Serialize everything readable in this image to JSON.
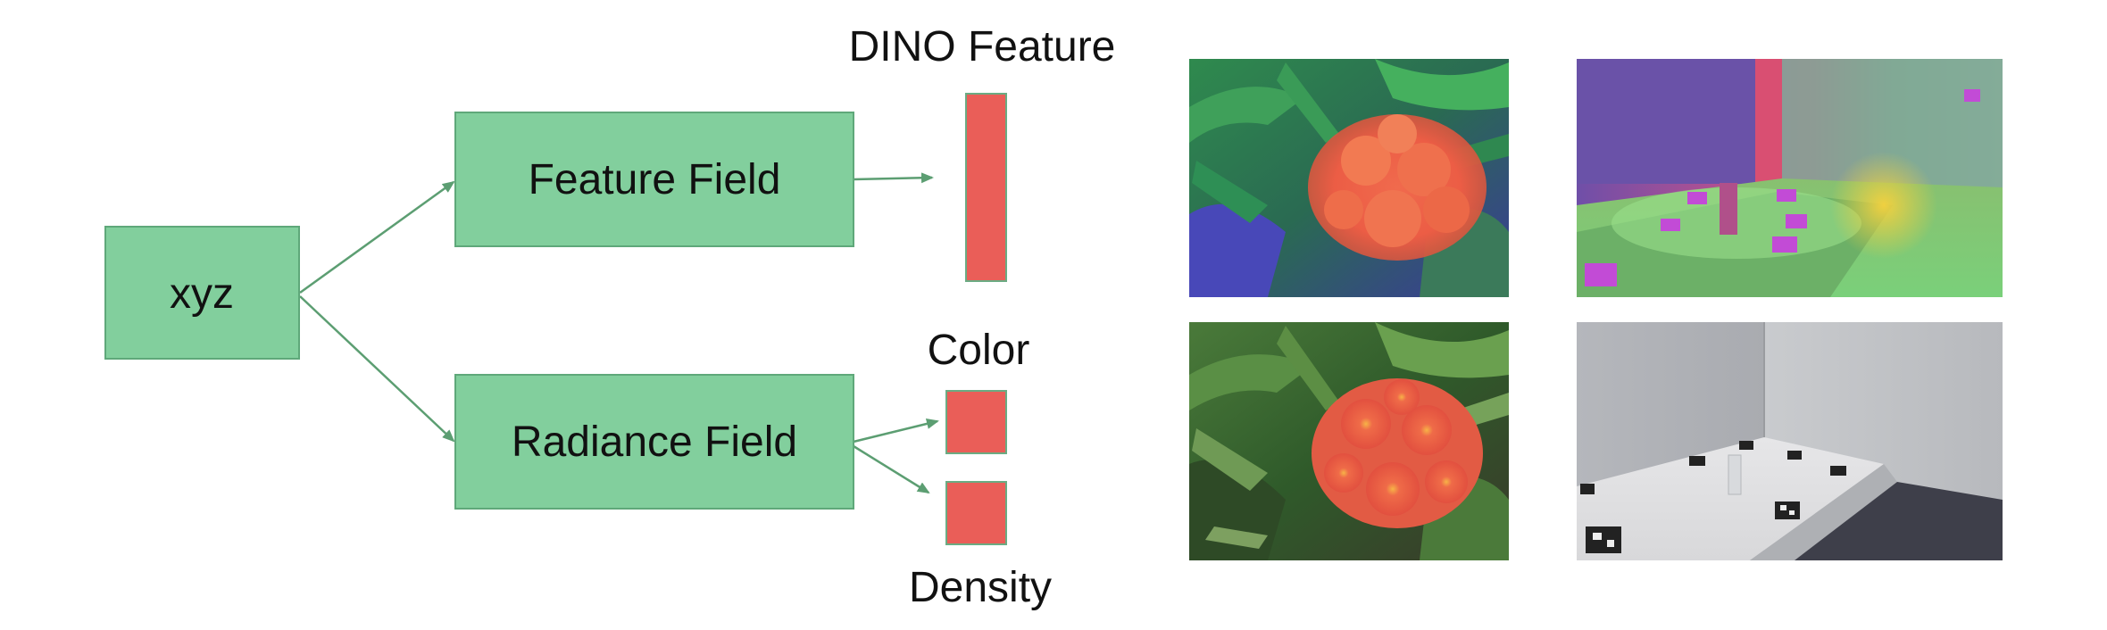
{
  "diagram": {
    "input_node": {
      "label": "xyz"
    },
    "feature_field": {
      "label": "Feature Field"
    },
    "radiance_field": {
      "label": "Radiance Field"
    },
    "outputs": {
      "dino_feature": "DINO Feature",
      "color": "Color",
      "density": "Density"
    }
  },
  "images": [
    {
      "id": "flower-feature-visualization",
      "kind": "feature map of flower scene"
    },
    {
      "id": "room-feature-visualization",
      "kind": "feature map of room scene"
    },
    {
      "id": "flower-rgb",
      "kind": "photo of red flowers among green leaves"
    },
    {
      "id": "room-rgb",
      "kind": "photo of a table in a grey room with markers"
    }
  ],
  "colors": {
    "node_fill": "#82cf9d",
    "node_stroke": "#5fa87a",
    "edge": "#5c9e72",
    "output_fill": "#ea5e58",
    "output_stroke": "#6bab83"
  }
}
